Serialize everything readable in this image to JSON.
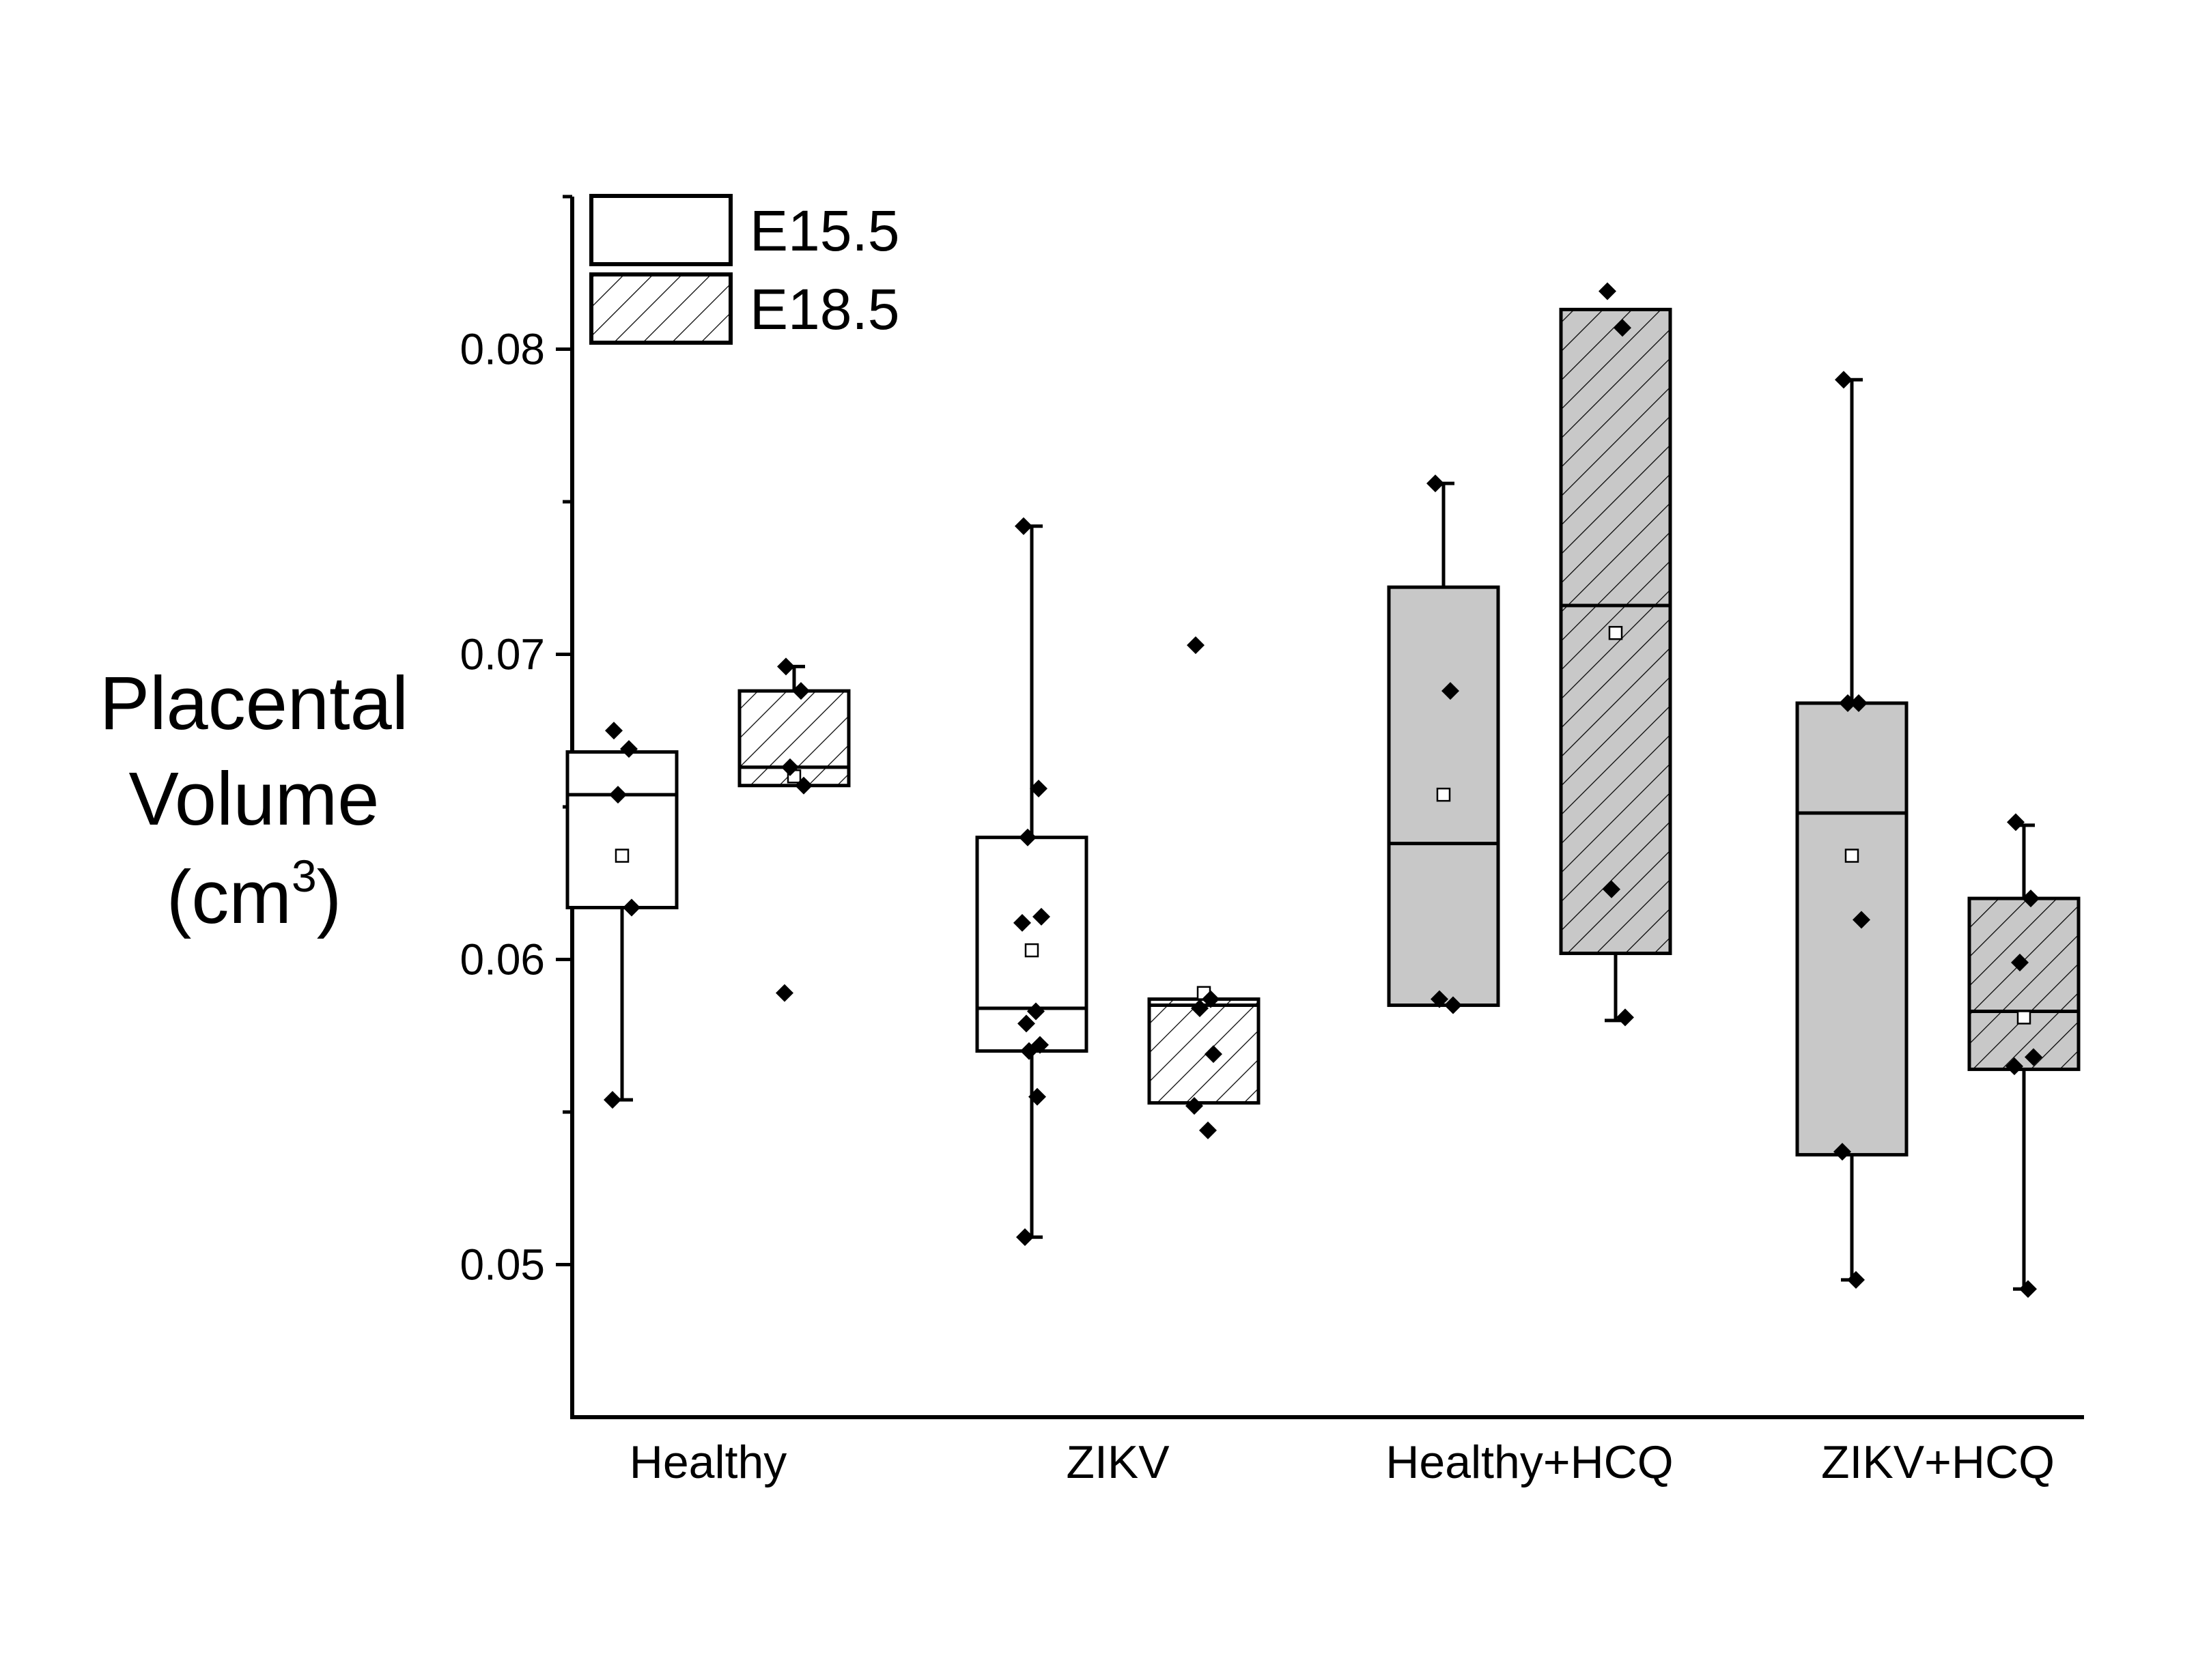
{
  "chart_data": {
    "type": "box",
    "ylabel_lines": [
      "Placental",
      "Volume"
    ],
    "ylabel_unit": "(cm",
    "ylabel_unit_sup": "3",
    "ylabel_unit_close": ")",
    "ylim": [
      0.045,
      0.085
    ],
    "yticks": [
      0.05,
      0.06,
      0.07,
      0.08
    ],
    "ytick_labels": [
      "0.05",
      "0.06",
      "0.07",
      "0.08"
    ],
    "categories": [
      "Healthy",
      "ZIKV",
      "Healthy+HCQ",
      "ZIKV+HCQ"
    ],
    "legend": {
      "position": "top-left",
      "entries": [
        {
          "label": "E15.5",
          "pattern": "none"
        },
        {
          "label": "E18.5",
          "pattern": "hatch"
        }
      ]
    },
    "colors": {
      "white_box": "#ffffff",
      "gray_box": "#c8c8c8",
      "stroke": "#000000"
    },
    "series": [
      {
        "category": "Healthy",
        "group": "E15.5",
        "fill": "white",
        "hatch": false,
        "whisker_low": 0.0554,
        "q1": 0.0617,
        "median": 0.0654,
        "q3": 0.0668,
        "whisker_high": 0.0668,
        "mean": 0.0634,
        "points": [
          0.0675,
          0.0669,
          0.0654,
          0.0617,
          0.0554
        ]
      },
      {
        "category": "Healthy",
        "group": "E18.5",
        "fill": "white",
        "hatch": true,
        "whisker_low": 0.0657,
        "q1": 0.0657,
        "median": 0.0663,
        "q3": 0.0688,
        "whisker_high": 0.0696,
        "mean": 0.066,
        "points": [
          0.0696,
          0.0688,
          0.0663,
          0.0657,
          0.0589
        ]
      },
      {
        "category": "ZIKV",
        "group": "E15.5",
        "fill": "white",
        "hatch": false,
        "whisker_low": 0.0509,
        "q1": 0.057,
        "median": 0.0584,
        "q3": 0.064,
        "whisker_high": 0.0742,
        "mean": 0.0603,
        "points": [
          0.0742,
          0.0656,
          0.064,
          0.0614,
          0.0612,
          0.0583,
          0.0579,
          0.0572,
          0.057,
          0.0555,
          0.0509
        ]
      },
      {
        "category": "ZIKV",
        "group": "E18.5",
        "fill": "white",
        "hatch": true,
        "whisker_low": 0.0553,
        "q1": 0.0553,
        "median": 0.0585,
        "q3": 0.0587,
        "whisker_high": 0.0587,
        "mean": 0.0589,
        "points": [
          0.0703,
          0.0587,
          0.0584,
          0.0569,
          0.0552,
          0.0544
        ]
      },
      {
        "category": "Healthy+HCQ",
        "group": "E15.5",
        "fill": "gray",
        "hatch": false,
        "whisker_low": 0.0585,
        "q1": 0.0585,
        "median": 0.0638,
        "q3": 0.0722,
        "whisker_high": 0.0756,
        "mean": 0.0654,
        "points": [
          0.0756,
          0.0688,
          0.0587,
          0.0585
        ]
      },
      {
        "category": "Healthy+HCQ",
        "group": "E18.5",
        "fill": "gray",
        "hatch": true,
        "whisker_low": 0.058,
        "q1": 0.0602,
        "median": 0.0716,
        "q3": 0.0813,
        "whisker_high": 0.0813,
        "mean": 0.0707,
        "points": [
          0.0819,
          0.0807,
          0.0623,
          0.0581
        ]
      },
      {
        "category": "ZIKV+HCQ",
        "group": "E15.5",
        "fill": "gray",
        "hatch": false,
        "whisker_low": 0.0495,
        "q1": 0.0536,
        "median": 0.0648,
        "q3": 0.0684,
        "whisker_high": 0.079,
        "mean": 0.0634,
        "points": [
          0.079,
          0.0684,
          0.0684,
          0.0613,
          0.0537,
          0.0495
        ]
      },
      {
        "category": "ZIKV+HCQ",
        "group": "E18.5",
        "fill": "gray",
        "hatch": true,
        "whisker_low": 0.0492,
        "q1": 0.0564,
        "median": 0.0583,
        "q3": 0.062,
        "whisker_high": 0.0644,
        "mean": 0.0581,
        "points": [
          0.0645,
          0.062,
          0.0599,
          0.0568,
          0.0565,
          0.0492
        ]
      }
    ]
  }
}
